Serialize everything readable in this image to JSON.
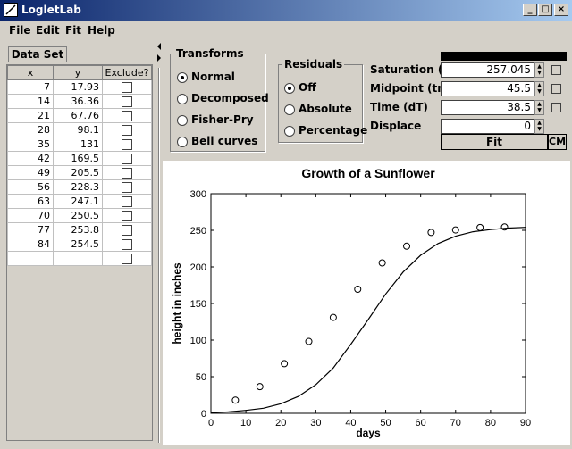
{
  "app": {
    "title": "LogletLab"
  },
  "menu": {
    "items": [
      "File",
      "Edit",
      "Fit",
      "Help"
    ]
  },
  "window_buttons": {
    "minimize": "_",
    "maximize": "□",
    "close": "×"
  },
  "left": {
    "tab": "Data Set",
    "columns": [
      "x",
      "y",
      "Exclude?"
    ],
    "rows": [
      {
        "x": "7",
        "y": "17.93"
      },
      {
        "x": "14",
        "y": "36.36"
      },
      {
        "x": "21",
        "y": "67.76"
      },
      {
        "x": "28",
        "y": "98.1"
      },
      {
        "x": "35",
        "y": "131"
      },
      {
        "x": "42",
        "y": "169.5"
      },
      {
        "x": "49",
        "y": "205.5"
      },
      {
        "x": "56",
        "y": "228.3"
      },
      {
        "x": "63",
        "y": "247.1"
      },
      {
        "x": "70",
        "y": "250.5"
      },
      {
        "x": "77",
        "y": "253.8"
      },
      {
        "x": "84",
        "y": "254.5"
      },
      {
        "x": "",
        "y": ""
      }
    ]
  },
  "transforms": {
    "title": "Transforms",
    "options": [
      "Normal",
      "Decomposed",
      "Fisher-Pry",
      "Bell curves"
    ],
    "selected": 0
  },
  "residuals": {
    "title": "Residuals",
    "options": [
      "Off",
      "Absolute",
      "Percentage"
    ],
    "selected": 0
  },
  "params": [
    {
      "label": "Saturation (K)",
      "value": "257.045"
    },
    {
      "label": "Midpoint (tm)",
      "value": "45.5"
    },
    {
      "label": "Time (dT)",
      "value": "38.5"
    },
    {
      "label": "Displace",
      "value": "0"
    }
  ],
  "buttons": {
    "fit": "Fit",
    "cm": "CM"
  },
  "chart_data": {
    "type": "scatter",
    "title": "Growth of a Sunflower",
    "xlabel": "days",
    "ylabel": "height in inches",
    "xlim": [
      0,
      90
    ],
    "ylim": [
      0,
      300
    ],
    "xticks": [
      0,
      10,
      20,
      30,
      40,
      50,
      60,
      70,
      80,
      90
    ],
    "yticks": [
      0,
      50,
      100,
      150,
      200,
      250,
      300
    ],
    "series": [
      {
        "type": "scatter",
        "marker": "circle",
        "x": [
          7,
          14,
          21,
          28,
          35,
          42,
          49,
          56,
          63,
          70,
          77,
          84
        ],
        "y": [
          17.93,
          36.36,
          67.76,
          98.1,
          131,
          169.5,
          205.5,
          228.3,
          247.1,
          250.5,
          253.8,
          254.5
        ]
      },
      {
        "type": "line",
        "x": [
          0,
          5,
          10,
          15,
          20,
          25,
          30,
          35,
          40,
          45,
          50,
          55,
          60,
          65,
          70,
          75,
          80,
          85,
          90
        ],
        "y": [
          1,
          2,
          4,
          7,
          13,
          23,
          39,
          62,
          94,
          128,
          163,
          193,
          216,
          232,
          242,
          248,
          251,
          253,
          254
        ]
      }
    ],
    "grid": false,
    "colors": {
      "marks": "#000000",
      "background": "#ffffff"
    }
  }
}
